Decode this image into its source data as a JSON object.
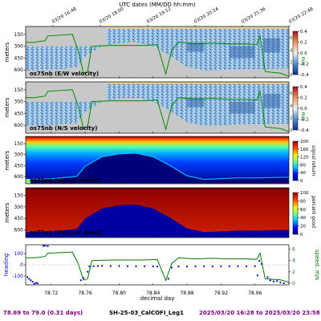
{
  "chart_data": [
    {
      "type": "heatmap",
      "panel_label": "os75nb (E/W velocity)",
      "top_axis_label": "UTC dates (MM/DD hh:mm)",
      "top_ticks": [
        "03/20 16:48",
        "03/20 18:00",
        "03/20 19:12",
        "03/20 20:24",
        "03/20 21:36",
        "03/20 22:48"
      ],
      "ylabel": "meters",
      "y_ticks": [
        150,
        300,
        450,
        600
      ],
      "ylim": [
        50,
        700
      ],
      "xlim": [
        78.69,
        79.0
      ],
      "colorbar": {
        "ticks": [
          "0.4",
          "0.2",
          "0.0",
          "-0.2",
          "-0.4"
        ],
        "range": [
          -0.4,
          0.4
        ],
        "colors": [
          "#1f3a93",
          "#4a86c5",
          "#f7f7f7",
          "#f08a4b",
          "#b2182b"
        ]
      },
      "speed_axis": {
        "label": "m/s",
        "ticks": [
          "6",
          "4",
          "2",
          "0"
        ]
      }
    },
    {
      "type": "heatmap",
      "panel_label": "os75nb (N/S velocity)",
      "ylabel": "meters",
      "y_ticks": [
        150,
        300,
        450,
        600
      ],
      "colorbar": {
        "ticks": [
          "0.4",
          "0.2",
          "0.0",
          "-0.2",
          "-0.4"
        ],
        "range": [
          -0.4,
          0.4
        ]
      },
      "speed_axis": {
        "label": "m/s",
        "ticks": [
          "6",
          "4",
          "2",
          "0"
        ]
      }
    },
    {
      "type": "heatmap",
      "panel_label": "os75nb (signal return)",
      "ylabel": "meters",
      "y_ticks": [
        150,
        300,
        450,
        600
      ],
      "colorbar": {
        "label": "signal return",
        "ticks": [
          "200",
          "160",
          "120",
          "80",
          "40",
          "0"
        ],
        "range": [
          0,
          200
        ]
      }
    },
    {
      "type": "heatmap",
      "panel_label": "os75nb (Percent Good)",
      "ylabel": "meters",
      "y_ticks": [
        150,
        300,
        450,
        600
      ],
      "xlabel": "decimal day",
      "x_ticks": [
        "78.72",
        "78.76",
        "78.80",
        "78.84",
        "78.88",
        "78.92",
        "78.96"
      ],
      "colorbar": {
        "label": "percent good",
        "ticks": [
          "100",
          "80",
          "60",
          "40",
          "20",
          "0"
        ],
        "range": [
          0,
          100
        ]
      }
    },
    {
      "type": "line",
      "ylabel_left": "heading",
      "ylabel_right": "speed, m/s",
      "left_ticks": [
        "100",
        "0",
        "-100"
      ],
      "right_ticks": [
        "6",
        "4",
        "2",
        "0"
      ],
      "x_ticks": [
        "78.72",
        "78.76",
        "78.80",
        "78.84",
        "78.88",
        "78.92",
        "78.96"
      ],
      "xlim": [
        78.69,
        79.0
      ],
      "series": [
        {
          "name": "heading",
          "color": "#0000cc",
          "x": [
            78.692,
            78.694,
            78.696,
            78.698,
            78.7,
            78.702,
            78.704,
            78.711,
            78.713,
            78.716,
            78.755,
            78.758,
            78.763,
            78.765,
            78.77,
            78.775,
            78.78,
            78.79,
            78.8,
            78.81,
            78.82,
            78.83,
            78.84,
            78.845,
            78.858,
            78.862,
            78.87,
            78.88,
            78.89,
            78.9,
            78.91,
            78.92,
            78.93,
            78.94,
            78.95,
            78.96,
            78.963,
            78.965,
            78.968,
            78.975,
            78.978,
            78.982,
            78.986,
            78.99,
            78.994
          ],
          "y": [
            -110,
            -125,
            -138,
            -152,
            -170,
            -162,
            -166,
            170,
            172,
            168,
            -138,
            -118,
            -62,
            -14,
            -12,
            -11,
            -10,
            -11,
            -11,
            -12,
            -13,
            -12,
            -14,
            -15,
            -125,
            -25,
            -15,
            -15,
            -14,
            -13,
            -14,
            -13,
            -12,
            -12,
            -13,
            -12,
            -95,
            35,
            8,
            -110,
            -140,
            -150,
            -146,
            -158,
            -165
          ]
        },
        {
          "name": "speed",
          "color": "#007a00",
          "x": [
            78.69,
            78.7,
            78.713,
            78.716,
            78.745,
            78.752,
            78.758,
            78.763,
            78.768,
            78.79,
            78.81,
            78.83,
            78.845,
            78.855,
            78.862,
            78.87,
            78.89,
            78.91,
            78.93,
            78.95,
            78.962,
            78.966,
            78.972,
            78.98,
            78.99,
            79.0
          ],
          "y": [
            4.5,
            4.5,
            4.7,
            5.3,
            5.5,
            3.4,
            0.6,
            0.8,
            4.0,
            4.1,
            4.1,
            4.1,
            4.2,
            0.5,
            3.5,
            4.5,
            4.3,
            4.4,
            4.3,
            4.3,
            4.2,
            5.3,
            0.8,
            0.7,
            0.6,
            0.2
          ]
        }
      ]
    }
  ],
  "footer": {
    "range": "78.69 to 79.0 (0.31 days)",
    "cruise": "SH-25-03_CalCOFI_Leg1",
    "dates": "2025/03/20 16:28 to 2025/03/20 23:58"
  }
}
